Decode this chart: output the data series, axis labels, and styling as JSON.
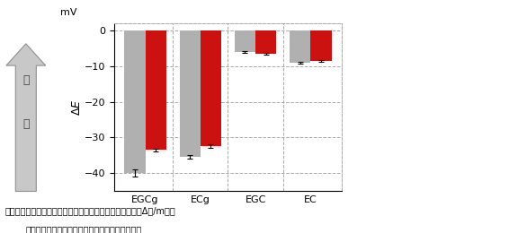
{
  "categories": [
    "EGCg",
    "ECg",
    "EGC",
    "EC"
  ],
  "gray_values": [
    -40.0,
    -35.5,
    -6.0,
    -9.0
  ],
  "red_values": [
    -33.5,
    -32.5,
    -6.5,
    -8.5
  ],
  "gray_errors": [
    1.0,
    0.5,
    0.3,
    0.3
  ],
  "red_errors": [
    0.4,
    0.5,
    0.3,
    0.3
  ],
  "gray_color": "#b0b0b0",
  "red_color": "#cc1111",
  "ylim": [
    -45,
    2
  ],
  "yticks": [
    -40,
    -30,
    -20,
    -10,
    0
  ],
  "bar_width": 0.38,
  "title_text": "図１　味覚センサーによる各カテキン水櫩液の応答出力（ΔＥ/mＶ）",
  "subtitle_text": "灘色：カテキンのみ，赤色：カテキン＋ペクチン",
  "arrow_label_top": "渋",
  "arrow_label_bottom": "味",
  "background_color": "#ffffff",
  "grid_color": "#aaaaaa",
  "ylabel_italic": "ΔE"
}
